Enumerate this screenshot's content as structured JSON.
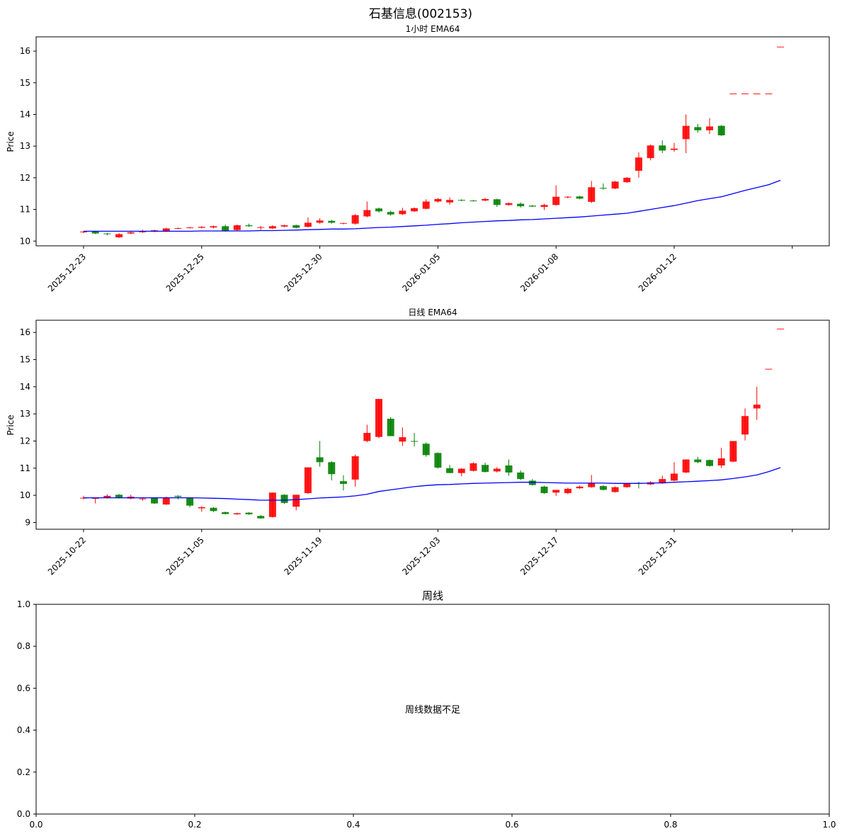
{
  "figure_title": "石基信息(002153)",
  "chart_data": [
    {
      "type": "candlestick",
      "title": "1小时 EMA64",
      "ylabel": "Price",
      "ylim": [
        9.85,
        16.45
      ],
      "yticks": [
        10,
        11,
        12,
        13,
        14,
        15,
        16
      ],
      "xlabels": [
        "2025-12-23",
        "2025-12-25",
        "2025-12-30",
        "2026-01-05",
        "2026-01-08",
        "2026-01-12",
        ""
      ],
      "xlabel_index": [
        0,
        10,
        20,
        30,
        40,
        50,
        60
      ],
      "colors": {
        "up": "#ff0000",
        "down": "#008000",
        "ema": "#0000ff"
      },
      "candles": [
        [
          10.28,
          10.32,
          10.25,
          10.3
        ],
        [
          10.3,
          10.33,
          10.22,
          10.24
        ],
        [
          10.24,
          10.26,
          10.18,
          10.22
        ],
        [
          10.12,
          10.25,
          10.1,
          10.22
        ],
        [
          10.24,
          10.3,
          10.22,
          10.28
        ],
        [
          10.28,
          10.36,
          10.26,
          10.32
        ],
        [
          10.3,
          10.36,
          10.28,
          10.34
        ],
        [
          10.3,
          10.42,
          10.29,
          10.4
        ],
        [
          10.4,
          10.43,
          10.38,
          10.41
        ],
        [
          10.42,
          10.45,
          10.4,
          10.43
        ],
        [
          10.42,
          10.47,
          10.4,
          10.45
        ],
        [
          10.43,
          10.49,
          10.4,
          10.47
        ],
        [
          10.47,
          10.52,
          10.3,
          10.32
        ],
        [
          10.35,
          10.52,
          10.33,
          10.5
        ],
        [
          10.5,
          10.55,
          10.45,
          10.47
        ],
        [
          10.42,
          10.48,
          10.35,
          10.44
        ],
        [
          10.4,
          10.5,
          10.38,
          10.47
        ],
        [
          10.46,
          10.52,
          10.44,
          10.5
        ],
        [
          10.5,
          10.52,
          10.4,
          10.42
        ],
        [
          10.45,
          10.75,
          10.43,
          10.58
        ],
        [
          10.58,
          10.72,
          10.55,
          10.65
        ],
        [
          10.64,
          10.67,
          10.55,
          10.58
        ],
        [
          10.56,
          10.58,
          10.53,
          10.57
        ],
        [
          10.55,
          10.85,
          10.52,
          10.82
        ],
        [
          10.78,
          11.25,
          10.75,
          10.98
        ],
        [
          11.03,
          11.06,
          10.9,
          10.94
        ],
        [
          10.92,
          10.96,
          10.8,
          10.84
        ],
        [
          10.85,
          11.05,
          10.82,
          10.96
        ],
        [
          10.94,
          11.06,
          10.92,
          11.04
        ],
        [
          11.02,
          11.32,
          11.0,
          11.25
        ],
        [
          11.25,
          11.36,
          11.22,
          11.33
        ],
        [
          11.22,
          11.38,
          11.15,
          11.3
        ],
        [
          11.3,
          11.32,
          11.26,
          11.28
        ],
        [
          11.28,
          11.3,
          11.25,
          11.26
        ],
        [
          11.28,
          11.36,
          11.26,
          11.33
        ],
        [
          11.32,
          11.34,
          11.08,
          11.14
        ],
        [
          11.14,
          11.22,
          11.12,
          11.2
        ],
        [
          11.18,
          11.22,
          11.06,
          11.1
        ],
        [
          11.12,
          11.14,
          11.08,
          11.09
        ],
        [
          11.08,
          11.18,
          10.98,
          11.14
        ],
        [
          11.14,
          11.76,
          11.12,
          11.4
        ],
        [
          11.38,
          11.42,
          11.35,
          11.4
        ],
        [
          11.41,
          11.43,
          11.32,
          11.34
        ],
        [
          11.24,
          11.9,
          11.2,
          11.7
        ],
        [
          11.68,
          11.82,
          11.62,
          11.66
        ],
        [
          11.66,
          11.9,
          11.64,
          11.88
        ],
        [
          11.86,
          12.02,
          11.84,
          12.0
        ],
        [
          12.22,
          12.8,
          12.0,
          12.64
        ],
        [
          12.62,
          13.05,
          12.55,
          13.02
        ],
        [
          13.02,
          13.18,
          12.78,
          12.86
        ],
        [
          12.88,
          13.1,
          12.82,
          12.92
        ],
        [
          13.22,
          14.0,
          12.78,
          13.64
        ],
        [
          13.6,
          13.7,
          13.42,
          13.5
        ],
        [
          13.5,
          13.88,
          13.38,
          13.62
        ],
        [
          13.64,
          13.66,
          13.32,
          13.34
        ],
        [
          14.66,
          14.66,
          14.66,
          14.66
        ],
        [
          14.66,
          14.66,
          14.66,
          14.66
        ],
        [
          14.66,
          14.66,
          14.66,
          14.66
        ],
        [
          14.66,
          14.66,
          14.66,
          14.66
        ],
        [
          16.14,
          16.14,
          16.14,
          16.14
        ]
      ],
      "ema": [
        10.31,
        10.31,
        10.31,
        10.31,
        10.31,
        10.31,
        10.31,
        10.31,
        10.31,
        10.31,
        10.32,
        10.32,
        10.32,
        10.32,
        10.32,
        10.33,
        10.33,
        10.34,
        10.35,
        10.36,
        10.37,
        10.38,
        10.38,
        10.39,
        10.41,
        10.43,
        10.44,
        10.46,
        10.48,
        10.5,
        10.53,
        10.55,
        10.58,
        10.6,
        10.62,
        10.64,
        10.65,
        10.67,
        10.68,
        10.7,
        10.72,
        10.74,
        10.76,
        10.79,
        10.82,
        10.85,
        10.88,
        10.94,
        11.0,
        11.06,
        11.12,
        11.2,
        11.28,
        11.34,
        11.4,
        11.5,
        11.6,
        11.69,
        11.78,
        11.92
      ]
    },
    {
      "type": "candlestick",
      "title": "日线 EMA64",
      "ylabel": "Price",
      "ylim": [
        8.75,
        16.45
      ],
      "yticks": [
        9,
        10,
        11,
        12,
        13,
        14,
        15,
        16
      ],
      "xlabels": [
        "2025-10-22",
        "2025-11-05",
        "2025-11-19",
        "2025-12-03",
        "2025-12-17",
        "2025-12-31",
        ""
      ],
      "xlabel_index": [
        0,
        10,
        20,
        30,
        40,
        50,
        60
      ],
      "colors": {
        "up": "#ff0000",
        "down": "#008000",
        "ema": "#0000ff"
      },
      "candles": [
        [
          9.9,
          9.98,
          9.85,
          9.91
        ],
        [
          9.88,
          9.92,
          9.7,
          9.9
        ],
        [
          9.92,
          10.04,
          9.88,
          9.98
        ],
        [
          10.02,
          10.05,
          9.88,
          9.92
        ],
        [
          9.88,
          10.02,
          9.85,
          9.95
        ],
        [
          9.86,
          9.92,
          9.8,
          9.88
        ],
        [
          9.9,
          9.92,
          9.68,
          9.7
        ],
        [
          9.66,
          9.95,
          9.65,
          9.92
        ],
        [
          9.98,
          10.0,
          9.85,
          9.94
        ],
        [
          9.9,
          9.92,
          9.56,
          9.62
        ],
        [
          9.52,
          9.6,
          9.4,
          9.56
        ],
        [
          9.54,
          9.57,
          9.38,
          9.42
        ],
        [
          9.38,
          9.4,
          9.3,
          9.31
        ],
        [
          9.3,
          9.36,
          9.28,
          9.34
        ],
        [
          9.36,
          9.38,
          9.28,
          9.3
        ],
        [
          9.24,
          9.27,
          9.14,
          9.15
        ],
        [
          9.2,
          10.1,
          9.18,
          10.1
        ],
        [
          10.02,
          10.04,
          9.68,
          9.72
        ],
        [
          9.58,
          10.02,
          9.45,
          10.02
        ],
        [
          10.08,
          11.03,
          10.05,
          11.03
        ],
        [
          11.4,
          12.0,
          11.05,
          11.22
        ],
        [
          11.22,
          11.26,
          10.55,
          10.78
        ],
        [
          10.52,
          10.74,
          10.18,
          10.42
        ],
        [
          10.58,
          11.5,
          10.32,
          11.44
        ],
        [
          12.0,
          12.6,
          11.95,
          12.3
        ],
        [
          12.15,
          13.55,
          12.1,
          13.55
        ],
        [
          12.82,
          12.88,
          12.2,
          12.18
        ],
        [
          11.98,
          12.5,
          11.82,
          12.14
        ],
        [
          12.0,
          12.3,
          11.8,
          11.98
        ],
        [
          11.9,
          11.95,
          11.42,
          11.48
        ],
        [
          11.56,
          11.58,
          10.98,
          11.02
        ],
        [
          11.0,
          11.12,
          10.82,
          10.82
        ],
        [
          10.82,
          11.0,
          10.7,
          10.98
        ],
        [
          10.9,
          11.22,
          10.88,
          11.18
        ],
        [
          11.12,
          11.2,
          10.84,
          10.86
        ],
        [
          10.88,
          11.04,
          10.84,
          10.98
        ],
        [
          11.1,
          11.32,
          10.72,
          10.84
        ],
        [
          10.84,
          10.92,
          10.56,
          10.6
        ],
        [
          10.54,
          10.6,
          10.36,
          10.38
        ],
        [
          10.32,
          10.35,
          10.05,
          10.08
        ],
        [
          10.1,
          10.2,
          9.98,
          10.2
        ],
        [
          10.08,
          10.28,
          10.04,
          10.24
        ],
        [
          10.26,
          10.36,
          10.24,
          10.32
        ],
        [
          10.3,
          10.75,
          10.28,
          10.44
        ],
        [
          10.34,
          10.38,
          10.18,
          10.2
        ],
        [
          10.12,
          10.32,
          10.1,
          10.3
        ],
        [
          10.3,
          10.46,
          10.28,
          10.44
        ],
        [
          10.46,
          10.5,
          10.25,
          10.44
        ],
        [
          10.4,
          10.52,
          10.38,
          10.48
        ],
        [
          10.44,
          10.72,
          10.42,
          10.6
        ],
        [
          10.54,
          11.22,
          10.52,
          10.8
        ],
        [
          10.84,
          11.32,
          10.82,
          11.32
        ],
        [
          11.32,
          11.42,
          11.18,
          11.22
        ],
        [
          11.3,
          11.32,
          11.06,
          11.08
        ],
        [
          11.1,
          11.75,
          11.0,
          11.36
        ],
        [
          11.24,
          12.0,
          11.22,
          12.0
        ],
        [
          12.24,
          13.2,
          12.02,
          12.92
        ],
        [
          13.2,
          14.0,
          12.78,
          13.34
        ],
        [
          14.66,
          14.66,
          14.66,
          14.66
        ],
        [
          16.14,
          16.14,
          16.14,
          16.14
        ]
      ],
      "ema": [
        9.91,
        9.91,
        9.91,
        9.91,
        9.91,
        9.91,
        9.91,
        9.91,
        9.91,
        9.91,
        9.9,
        9.89,
        9.88,
        9.86,
        9.84,
        9.82,
        9.82,
        9.82,
        9.84,
        9.87,
        9.9,
        9.92,
        9.94,
        9.98,
        10.04,
        10.14,
        10.2,
        10.26,
        10.32,
        10.36,
        10.39,
        10.4,
        10.42,
        10.44,
        10.45,
        10.46,
        10.47,
        10.48,
        10.48,
        10.47,
        10.46,
        10.45,
        10.45,
        10.45,
        10.45,
        10.44,
        10.44,
        10.44,
        10.45,
        10.46,
        10.48,
        10.5,
        10.52,
        10.54,
        10.57,
        10.62,
        10.68,
        10.75,
        10.87,
        11.02
      ]
    },
    {
      "type": "empty",
      "title": "周线",
      "message": "周线数据不足",
      "xlim": [
        0,
        1
      ],
      "ylim": [
        0,
        1
      ],
      "xticks": [
        "0.0",
        "0.2",
        "0.4",
        "0.6",
        "0.8",
        "1.0"
      ],
      "yticks": [
        "0.0",
        "0.2",
        "0.4",
        "0.6",
        "0.8",
        "1.0"
      ]
    }
  ]
}
